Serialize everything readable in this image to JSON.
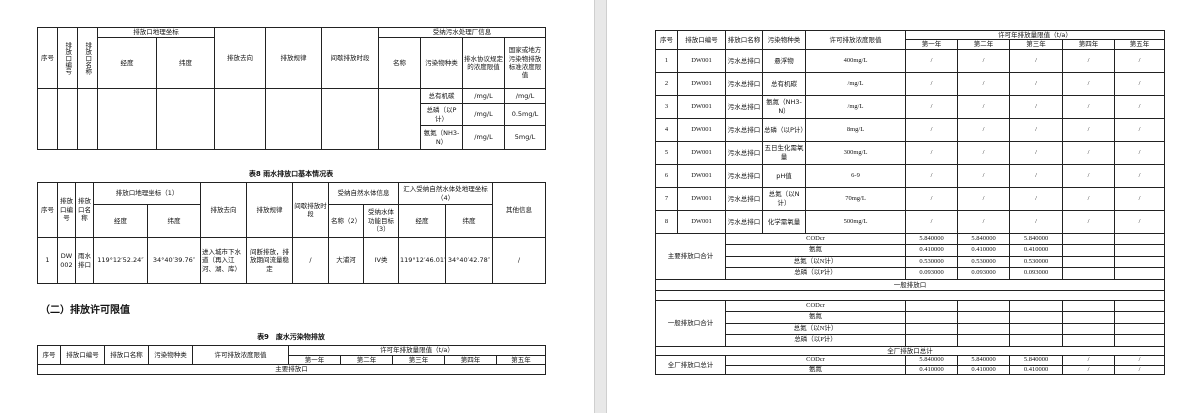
{
  "left_page": {
    "table7": {
      "headers": {
        "seq": "序号",
        "code": "排放口编号",
        "name": "排放口名称",
        "coord": "排放口地理坐标",
        "lon": "经度",
        "lat": "纬度",
        "dest": "排放去向",
        "rule": "排放规律",
        "period": "间歇排放时段",
        "plant_info": "受纳污水处理厂信息",
        "plant_name": "名称",
        "pollutant": "污染物种类",
        "agreed_limit": "排水协议规定的浓度限值",
        "std_limit": "国家或地方污染物排放标准浓度限值"
      },
      "rows": [
        {
          "pollutant": "总有机碳",
          "agreed": "/mg/L",
          "std": "/mg/L"
        },
        {
          "pollutant": "总磷（以P计）",
          "agreed": "/mg/L",
          "std": "0.5mg/L"
        },
        {
          "pollutant": "氨氮（NH3-N）",
          "agreed": "/mg/L",
          "std": "5mg/L"
        }
      ]
    },
    "table8": {
      "title": "表8 雨水排放口基本情况表",
      "headers": {
        "seq": "序号",
        "code": "排放口编号",
        "name": "排放口名称",
        "coord": "排放口地理坐标（1）",
        "lon": "经度",
        "lat": "纬度",
        "dest": "排放去向",
        "rule": "排放规律",
        "period": "间歇排放时段",
        "water_info": "受纳自然水体信息",
        "water_name": "名称（2）",
        "water_target": "受纳水体功能目标（3）",
        "inflow_coord": "汇入受纳自然水体处地理坐标（4）",
        "lon2": "经度",
        "lat2": "纬度",
        "other": "其他信息"
      },
      "row": {
        "seq": "1",
        "code": "DW002",
        "name": "雨水排口",
        "lon": "119°12′52.24″",
        "lat": "34°40′39.76″",
        "dest": "进入城市下水道（再入江河、湖、库）",
        "rule": "间断排放，排放期间流量稳定",
        "period": "/",
        "water_name": "大浦河",
        "water_target": "IV类",
        "lon2": "119°12′46.01″",
        "lat2": "34°40′42.78″",
        "other": "/"
      }
    },
    "section_heading": "（二）排放许可限值",
    "table9": {
      "title": "表9　废水污染物排放",
      "headers": {
        "seq": "序号",
        "code": "排放口编号",
        "name": "排放口名称",
        "pollutant": "污染物种类",
        "conc": "许可排放浓度限值",
        "annual": "许可年排放量限值（t/a）",
        "years": [
          "第一年",
          "第二年",
          "第三年",
          "第四年",
          "第五年"
        ]
      },
      "section": "主要排放口"
    }
  },
  "right_page": {
    "headers": {
      "seq": "序号",
      "code": "排放口编号",
      "name": "排放口名称",
      "pollutant": "污染物种类",
      "conc": "许可排放浓度限值",
      "annual": "许可年排放量限值（t/a）",
      "years": [
        "第一年",
        "第二年",
        "第三年",
        "第四年",
        "第五年"
      ]
    },
    "rows": [
      {
        "seq": "1",
        "code": "DW001",
        "name": "污水总排口",
        "pollutant": "悬浮物",
        "conc": "400mg/L",
        "years": [
          "/",
          "/",
          "/",
          "/",
          "/"
        ]
      },
      {
        "seq": "2",
        "code": "DW001",
        "name": "污水总排口",
        "pollutant": "总有机碳",
        "conc": "/mg/L",
        "years": [
          "/",
          "/",
          "/",
          "/",
          "/"
        ]
      },
      {
        "seq": "3",
        "code": "DW001",
        "name": "污水总排口",
        "pollutant": "氨氮（NH3-N）",
        "conc": "/mg/L",
        "years": [
          "/",
          "/",
          "/",
          "/",
          "/"
        ]
      },
      {
        "seq": "4",
        "code": "DW001",
        "name": "污水总排口",
        "pollutant": "总磷（以P计）",
        "conc": "8mg/L",
        "years": [
          "/",
          "/",
          "/",
          "/",
          "/"
        ]
      },
      {
        "seq": "5",
        "code": "DW001",
        "name": "污水总排口",
        "pollutant": "五日生化需氧量",
        "conc": "300mg/L",
        "years": [
          "/",
          "/",
          "/",
          "/",
          "/"
        ]
      },
      {
        "seq": "6",
        "code": "DW001",
        "name": "污水总排口",
        "pollutant": "pH值",
        "conc": "6-9",
        "years": [
          "/",
          "/",
          "/",
          "/",
          "/"
        ]
      },
      {
        "seq": "7",
        "code": "DW001",
        "name": "污水总排口",
        "pollutant": "总氮（以N计）",
        "conc": "70mg/L",
        "years": [
          "/",
          "/",
          "/",
          "/",
          "/"
        ]
      },
      {
        "seq": "8",
        "code": "DW001",
        "name": "污水总排口",
        "pollutant": "化学需氧量",
        "conc": "500mg/L",
        "years": [
          "/",
          "/",
          "/",
          "/",
          "/"
        ]
      }
    ],
    "main_total": {
      "label": "主要排放口合计",
      "items": [
        {
          "name": "CODcr",
          "years": [
            "5.840000",
            "5.840000",
            "5.840000",
            "",
            ""
          ]
        },
        {
          "name": "氨氮",
          "years": [
            "0.410000",
            "0.410000",
            "0.410000",
            "",
            ""
          ]
        },
        {
          "name": "总氮（以N计）",
          "years": [
            "0.530000",
            "0.530000",
            "0.530000",
            "",
            ""
          ]
        },
        {
          "name": "总磷（以P计）",
          "years": [
            "0.093000",
            "0.093000",
            "0.093000",
            "",
            ""
          ]
        }
      ]
    },
    "general_section": "一般排放口",
    "general_total": {
      "label": "一般排放口合计",
      "items": [
        {
          "name": "CODcr",
          "years": [
            "",
            "",
            "",
            "",
            ""
          ]
        },
        {
          "name": "氨氮",
          "years": [
            "",
            "",
            "",
            "",
            ""
          ]
        },
        {
          "name": "总氮（以N计）",
          "years": [
            "",
            "",
            "",
            "",
            ""
          ]
        },
        {
          "name": "总磷（以P计）",
          "years": [
            "",
            "",
            "",
            "",
            ""
          ]
        }
      ]
    },
    "plant_section": "全厂排放口总计",
    "plant_total": {
      "label": "全厂排放口总计",
      "items": [
        {
          "name": "CODcr",
          "years": [
            "5.840000",
            "5.840000",
            "5.840000",
            "/",
            "/"
          ]
        },
        {
          "name": "氨氮",
          "years": [
            "0.410000",
            "0.410000",
            "0.410000",
            "/",
            "/"
          ]
        }
      ]
    }
  }
}
